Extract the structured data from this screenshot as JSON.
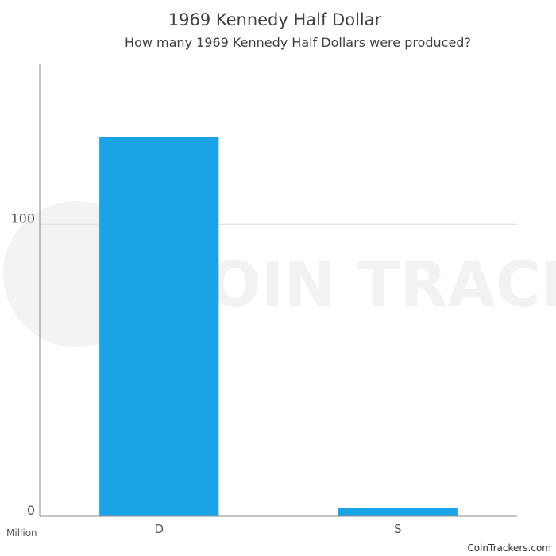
{
  "chart_data": {
    "type": "bar",
    "title": "1969 Kennedy Half Dollar",
    "subtitle": "How many 1969 Kennedy Half Dollars were produced?",
    "categories": [
      "D",
      "S"
    ],
    "values": [
      129.9,
      2.9
    ],
    "ylabel": "Million",
    "yticks": [
      0,
      100
    ],
    "ylim": [
      0,
      155
    ],
    "grid": true,
    "bar_color": "#1aa3e6"
  },
  "watermark": {
    "text": "COIN TRACKERS"
  },
  "footer": {
    "source": "CoinTrackers.com"
  }
}
